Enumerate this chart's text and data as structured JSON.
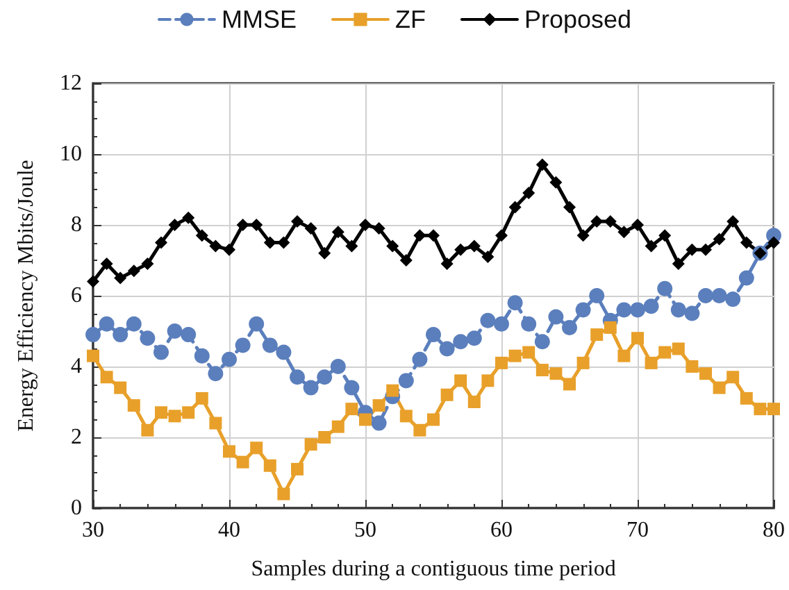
{
  "chart_data": {
    "type": "line",
    "xlabel": "Samples during a contiguous time period",
    "ylabel": "Energy Efficiency Mbits/Joule",
    "x": [
      30,
      31,
      32,
      33,
      34,
      35,
      36,
      37,
      38,
      39,
      40,
      41,
      42,
      43,
      44,
      45,
      46,
      47,
      48,
      49,
      50,
      51,
      52,
      53,
      54,
      55,
      56,
      57,
      58,
      59,
      60,
      61,
      62,
      63,
      64,
      65,
      66,
      67,
      68,
      69,
      70,
      71,
      72,
      73,
      74,
      75,
      76,
      77,
      78,
      79,
      80
    ],
    "series": [
      {
        "name": "MMSE",
        "color": "#5b7fbd",
        "marker": "circle",
        "line_style": "dashed",
        "values": [
          4.9,
          5.2,
          4.9,
          5.2,
          4.8,
          4.4,
          5.0,
          4.9,
          4.3,
          3.8,
          4.2,
          4.6,
          5.2,
          4.6,
          4.4,
          3.7,
          3.4,
          3.7,
          4.0,
          3.4,
          2.7,
          2.4,
          3.15,
          3.6,
          4.2,
          4.9,
          4.5,
          4.7,
          4.8,
          5.3,
          5.2,
          5.8,
          5.2,
          4.7,
          5.4,
          5.1,
          5.6,
          6.0,
          5.3,
          5.6,
          5.6,
          5.7,
          6.2,
          5.6,
          5.5,
          6.0,
          6.0,
          5.9,
          6.5,
          7.2,
          7.7
        ]
      },
      {
        "name": "ZF",
        "color": "#e8a02a",
        "marker": "square",
        "line_style": "solid",
        "values": [
          4.3,
          3.7,
          3.4,
          2.9,
          2.2,
          2.7,
          2.6,
          2.7,
          3.1,
          2.4,
          1.6,
          1.3,
          1.7,
          1.2,
          0.4,
          1.1,
          1.8,
          2.0,
          2.3,
          2.8,
          2.5,
          2.9,
          3.32,
          2.6,
          2.2,
          2.5,
          3.2,
          3.6,
          3.0,
          3.6,
          4.1,
          4.3,
          4.4,
          3.9,
          3.8,
          3.5,
          4.1,
          4.9,
          5.1,
          4.3,
          4.8,
          4.1,
          4.4,
          4.5,
          4.0,
          3.8,
          3.4,
          3.7,
          3.1,
          2.8,
          2.8
        ]
      },
      {
        "name": "Proposed",
        "color": "#000000",
        "marker": "diamond",
        "line_style": "solid",
        "values": [
          6.4,
          6.9,
          6.5,
          6.7,
          6.9,
          7.5,
          8.0,
          8.2,
          7.7,
          7.4,
          7.3,
          8.0,
          8.0,
          7.5,
          7.5,
          8.1,
          7.9,
          7.2,
          7.8,
          7.4,
          8.0,
          7.9,
          7.4,
          7.0,
          7.7,
          7.7,
          6.9,
          7.3,
          7.4,
          7.1,
          7.7,
          8.5,
          8.9,
          9.7,
          9.2,
          8.5,
          7.7,
          8.1,
          8.1,
          7.8,
          8.0,
          7.4,
          7.7,
          6.9,
          7.3,
          7.3,
          7.6,
          8.1,
          7.5,
          7.2,
          7.5
        ]
      }
    ],
    "xlim": [
      30,
      80
    ],
    "xticks": [
      30,
      40,
      50,
      60,
      70,
      80
    ],
    "ylim": [
      0,
      12
    ],
    "yticks": [
      0,
      2,
      4,
      6,
      8,
      10,
      12
    ],
    "grid": true,
    "legend": "top"
  }
}
